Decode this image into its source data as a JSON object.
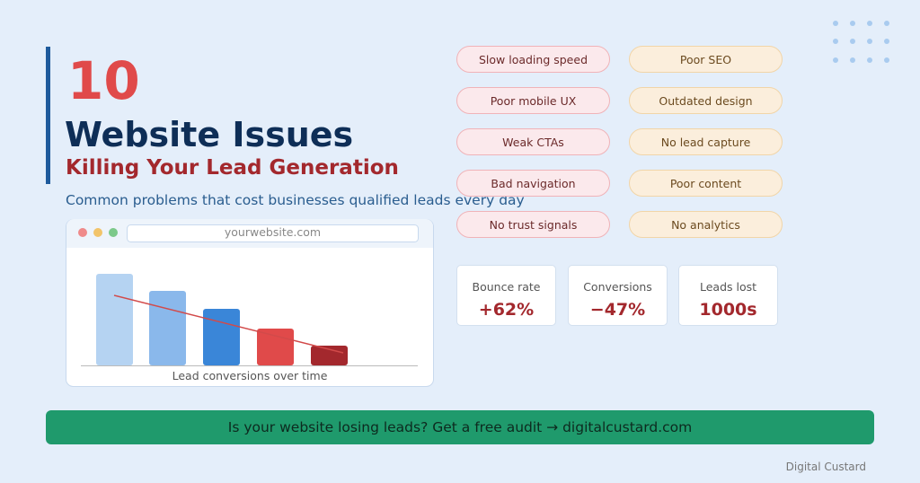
{
  "header": {
    "number": "10",
    "title": "Website Issues",
    "subtitle": "Killing Your Lead Generation",
    "description": "Common problems that cost businesses qualified leads every day"
  },
  "browser": {
    "url": "yourwebsite.com",
    "caption": "Lead conversions over time"
  },
  "issues": {
    "left": [
      "Slow loading speed",
      "Poor mobile UX",
      "Weak CTAs",
      "Bad navigation",
      "No trust signals"
    ],
    "right": [
      "Poor SEO",
      "Outdated design",
      "No lead capture",
      "Poor content",
      "No analytics"
    ]
  },
  "stats": [
    {
      "label": "Bounce rate",
      "value": "+62%"
    },
    {
      "label": "Conversions",
      "value": "−47%"
    },
    {
      "label": "Leads lost",
      "value": "1000s"
    }
  ],
  "cta": "Is your website losing leads? Get a free audit → digitalcustard.com",
  "footer": "Digital Custard"
}
